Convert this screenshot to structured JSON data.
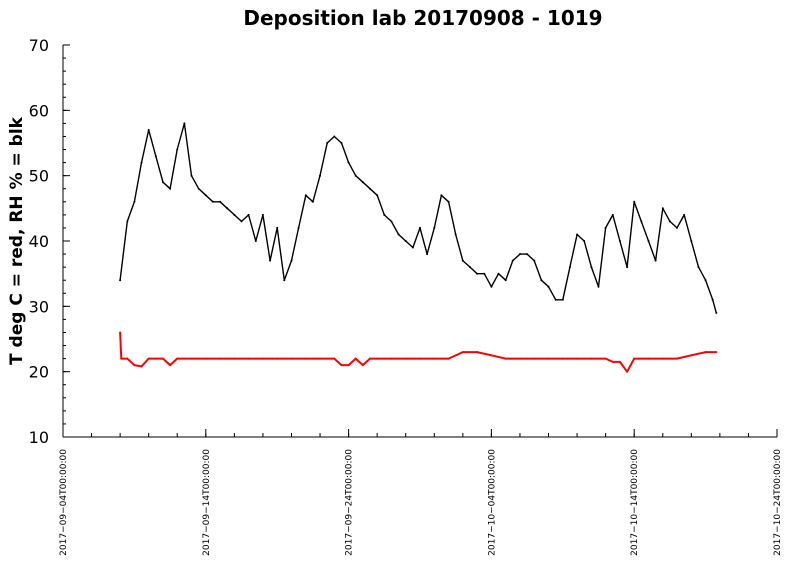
{
  "chart_data": {
    "type": "line",
    "title": "Deposition lab 20170908 - 1019",
    "ylabel": "T deg C = red, RH % = blk",
    "xlabel": "",
    "ylim": [
      10,
      70
    ],
    "xlim": [
      "2017-09-04",
      "2017-10-24"
    ],
    "yticks": [
      10,
      20,
      30,
      40,
      50,
      60,
      70
    ],
    "yticklabels": [
      "10",
      "20",
      "30",
      "40",
      "50",
      "60",
      "70"
    ],
    "xticks": [
      "2017-09-04",
      "2017-09-14",
      "2017-09-24",
      "2017-10-04",
      "2017-10-14",
      "2017-10-24"
    ],
    "xticklabels": [
      "2017−09−04T00:00:00",
      "2017−09−14T00:00:00",
      "2017−09−24T00:00:00",
      "2017−10−04T00:00:00",
      "2017−10−14T00:00:00",
      "2017−10−24T00:00:00"
    ],
    "grid": false,
    "legend": "none",
    "series": [
      {
        "color": "#000000",
        "x": [
          "2017-09-08T00:00",
          "2017-09-08T12:00",
          "2017-09-09T00:00",
          "2017-09-09T12:00",
          "2017-09-10T00:00",
          "2017-09-10T12:00",
          "2017-09-11T00:00",
          "2017-09-11T12:00",
          "2017-09-12T00:00",
          "2017-09-12T12:00",
          "2017-09-13T00:00",
          "2017-09-13T12:00",
          "2017-09-14T00:00",
          "2017-09-14T12:00",
          "2017-09-15T00:00",
          "2017-09-15T12:00",
          "2017-09-16T00:00",
          "2017-09-16T12:00",
          "2017-09-17T00:00",
          "2017-09-17T12:00",
          "2017-09-18T00:00",
          "2017-09-18T12:00",
          "2017-09-19T00:00",
          "2017-09-19T12:00",
          "2017-09-20T00:00",
          "2017-09-20T12:00",
          "2017-09-21T00:00",
          "2017-09-21T12:00",
          "2017-09-22T00:00",
          "2017-09-22T12:00",
          "2017-09-23T00:00",
          "2017-09-23T12:00",
          "2017-09-24T00:00",
          "2017-09-24T12:00",
          "2017-09-25T00:00",
          "2017-09-25T12:00",
          "2017-09-26T00:00",
          "2017-09-26T12:00",
          "2017-09-27T00:00",
          "2017-09-27T12:00",
          "2017-09-28T00:00",
          "2017-09-28T12:00",
          "2017-09-29T00:00",
          "2017-09-29T12:00",
          "2017-09-30T00:00",
          "2017-09-30T12:00",
          "2017-10-01T00:00",
          "2017-10-01T12:00",
          "2017-10-02T00:00",
          "2017-10-02T12:00",
          "2017-10-03T00:00",
          "2017-10-03T12:00",
          "2017-10-04T00:00",
          "2017-10-04T12:00",
          "2017-10-05T00:00",
          "2017-10-05T12:00",
          "2017-10-06T00:00",
          "2017-10-06T12:00",
          "2017-10-07T00:00",
          "2017-10-07T12:00",
          "2017-10-08T00:00",
          "2017-10-08T12:00",
          "2017-10-09T00:00",
          "2017-10-09T12:00",
          "2017-10-10T00:00",
          "2017-10-10T12:00",
          "2017-10-11T00:00",
          "2017-10-11T12:00",
          "2017-10-12T00:00",
          "2017-10-12T12:00",
          "2017-10-13T00:00",
          "2017-10-13T12:00",
          "2017-10-14T00:00",
          "2017-10-14T12:00",
          "2017-10-15T00:00",
          "2017-10-15T12:00",
          "2017-10-16T00:00",
          "2017-10-16T12:00",
          "2017-10-17T00:00",
          "2017-10-17T12:00",
          "2017-10-18T00:00",
          "2017-10-18T12:00",
          "2017-10-19T00:00",
          "2017-10-19T12:00",
          "2017-10-19T18:00"
        ],
        "y": [
          34,
          43,
          46,
          52,
          57,
          53,
          49,
          48,
          54,
          58,
          50,
          48,
          47,
          46,
          46,
          45,
          44,
          43,
          44,
          40,
          44,
          37,
          42,
          34,
          37,
          42,
          47,
          46,
          50,
          55,
          56,
          55,
          52,
          50,
          49,
          48,
          47,
          44,
          43,
          41,
          40,
          39,
          42,
          38,
          42,
          47,
          46,
          41,
          37,
          36,
          35,
          35,
          33,
          35,
          34,
          37,
          38,
          38,
          37,
          34,
          33,
          31,
          31,
          36,
          41,
          40,
          36,
          33,
          42,
          44,
          40,
          36,
          46,
          43,
          40,
          37,
          45,
          43,
          42,
          44,
          40,
          36,
          34,
          31,
          29
        ]
      },
      {
        "color": "#ff0000",
        "x": [
          "2017-09-08T00:00",
          "2017-09-08T02:00",
          "2017-09-08T12:00",
          "2017-09-09T00:00",
          "2017-09-09T12:00",
          "2017-09-10T00:00",
          "2017-09-10T12:00",
          "2017-09-11T00:00",
          "2017-09-11T12:00",
          "2017-09-12T00:00",
          "2017-09-12T12:00",
          "2017-09-13T00:00",
          "2017-09-14T00:00",
          "2017-09-15T00:00",
          "2017-09-16T00:00",
          "2017-09-17T00:00",
          "2017-09-18T00:00",
          "2017-09-19T00:00",
          "2017-09-20T00:00",
          "2017-09-21T00:00",
          "2017-09-22T00:00",
          "2017-09-23T00:00",
          "2017-09-23T12:00",
          "2017-09-24T00:00",
          "2017-09-24T12:00",
          "2017-09-25T00:00",
          "2017-09-25T12:00",
          "2017-09-26T00:00",
          "2017-09-27T00:00",
          "2017-09-28T00:00",
          "2017-09-29T00:00",
          "2017-09-30T00:00",
          "2017-10-01T00:00",
          "2017-10-02T00:00",
          "2017-10-03T00:00",
          "2017-10-04T00:00",
          "2017-10-05T00:00",
          "2017-10-06T00:00",
          "2017-10-07T00:00",
          "2017-10-08T00:00",
          "2017-10-09T00:00",
          "2017-10-10T00:00",
          "2017-10-11T00:00",
          "2017-10-12T00:00",
          "2017-10-12T12:00",
          "2017-10-13T00:00",
          "2017-10-13T12:00",
          "2017-10-14T00:00",
          "2017-10-15T00:00",
          "2017-10-16T00:00",
          "2017-10-17T00:00",
          "2017-10-18T00:00",
          "2017-10-19T00:00",
          "2017-10-19T18:00"
        ],
        "y": [
          26,
          22,
          22,
          21,
          20.8,
          22,
          22,
          22,
          21,
          22,
          22,
          22,
          22,
          22,
          22,
          22,
          22,
          22,
          22,
          22,
          22,
          22,
          21,
          21,
          22,
          21,
          22,
          22,
          22,
          22,
          22,
          22,
          22,
          23,
          23,
          22.5,
          22,
          22,
          22,
          22,
          22,
          22,
          22,
          22,
          21.5,
          21.5,
          20,
          22,
          22,
          22,
          22,
          22.5,
          23,
          23
        ]
      }
    ]
  }
}
